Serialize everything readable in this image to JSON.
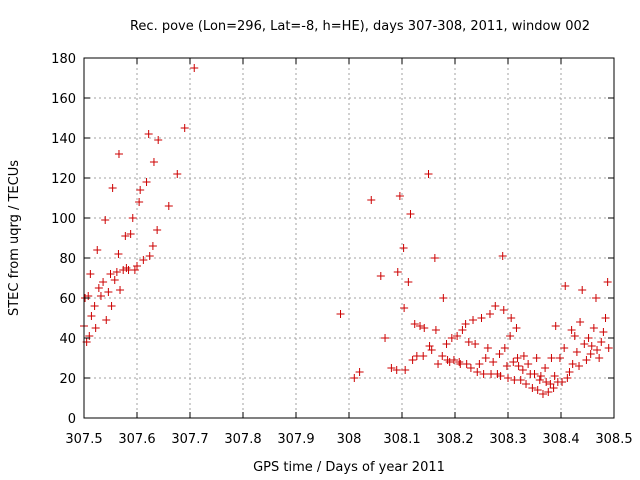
{
  "chart_data": {
    "type": "scatter",
    "title": "Rec. pove (Lon=296, Lat=-8, h=HE), days 307-308, 2011, window 002",
    "xlabel": "GPS time / Days of year 2011",
    "ylabel": "STEC from uqrg / TECUs",
    "xlim": [
      307.5,
      308.5
    ],
    "ylim": [
      0,
      180
    ],
    "xticks": [
      "307.5",
      "307.6",
      "307.7",
      "307.8",
      "307.9",
      "308",
      "308.1",
      "308.2",
      "308.3",
      "308.4",
      "308.5"
    ],
    "yticks": [
      "0",
      "20",
      "40",
      "60",
      "80",
      "100",
      "120",
      "140",
      "160",
      "180"
    ],
    "grid": true,
    "marker": "plus",
    "color": "#cc0000",
    "series": [
      {
        "points": [
          [
            307.5,
            46
          ],
          [
            307.502,
            60
          ],
          [
            307.505,
            38
          ],
          [
            307.508,
            61
          ],
          [
            307.51,
            41
          ],
          [
            307.512,
            72
          ],
          [
            307.514,
            51
          ],
          [
            307.52,
            56
          ],
          [
            307.522,
            45
          ],
          [
            307.525,
            84
          ],
          [
            307.528,
            65
          ],
          [
            307.532,
            61
          ],
          [
            307.536,
            68
          ],
          [
            307.54,
            99
          ],
          [
            307.542,
            49
          ],
          [
            307.546,
            63
          ],
          [
            307.55,
            72
          ],
          [
            307.552,
            56
          ],
          [
            307.554,
            115
          ],
          [
            307.558,
            69
          ],
          [
            307.562,
            73
          ],
          [
            307.565,
            82
          ],
          [
            307.566,
            132
          ],
          [
            307.568,
            64
          ],
          [
            307.574,
            74
          ],
          [
            307.578,
            91
          ],
          [
            307.58,
            75
          ],
          [
            307.584,
            74
          ],
          [
            307.588,
            92
          ],
          [
            307.592,
            100
          ],
          [
            307.596,
            74
          ],
          [
            307.6,
            76
          ],
          [
            307.604,
            108
          ],
          [
            307.606,
            114
          ],
          [
            307.612,
            79
          ],
          [
            307.618,
            118
          ],
          [
            307.622,
            142
          ],
          [
            307.624,
            81
          ],
          [
            307.63,
            86
          ],
          [
            307.632,
            128
          ],
          [
            307.638,
            94
          ],
          [
            307.64,
            139
          ],
          [
            307.66,
            106
          ],
          [
            307.676,
            122
          ],
          [
            307.69,
            145
          ],
          [
            307.708,
            175
          ],
          [
            307.984,
            52
          ],
          [
            308.01,
            20
          ],
          [
            308.02,
            23
          ],
          [
            308.042,
            109
          ],
          [
            308.06,
            71
          ],
          [
            308.068,
            40
          ],
          [
            308.08,
            25
          ],
          [
            308.09,
            24
          ],
          [
            308.092,
            73
          ],
          [
            308.096,
            111
          ],
          [
            308.103,
            85
          ],
          [
            308.104,
            55
          ],
          [
            308.106,
            24
          ],
          [
            308.112,
            68
          ],
          [
            308.116,
            102
          ],
          [
            308.12,
            29
          ],
          [
            308.124,
            47
          ],
          [
            308.128,
            31
          ],
          [
            308.134,
            46
          ],
          [
            308.14,
            31
          ],
          [
            308.142,
            45
          ],
          [
            308.15,
            122
          ],
          [
            308.152,
            36
          ],
          [
            308.156,
            34
          ],
          [
            308.162,
            80
          ],
          [
            308.164,
            44
          ],
          [
            308.168,
            27
          ],
          [
            308.176,
            31
          ],
          [
            308.178,
            60
          ],
          [
            308.184,
            37
          ],
          [
            308.186,
            29
          ],
          [
            308.19,
            28
          ],
          [
            308.194,
            40
          ],
          [
            308.198,
            29
          ],
          [
            308.204,
            41
          ],
          [
            308.208,
            28
          ],
          [
            308.21,
            27
          ],
          [
            308.214,
            44
          ],
          [
            308.22,
            47
          ],
          [
            308.222,
            27
          ],
          [
            308.226,
            38
          ],
          [
            308.23,
            25
          ],
          [
            308.234,
            49
          ],
          [
            308.238,
            37
          ],
          [
            308.242,
            23
          ],
          [
            308.246,
            27
          ],
          [
            308.25,
            50
          ],
          [
            308.254,
            22
          ],
          [
            308.258,
            30
          ],
          [
            308.262,
            35
          ],
          [
            308.266,
            52
          ],
          [
            308.268,
            22
          ],
          [
            308.272,
            28
          ],
          [
            308.276,
            56
          ],
          [
            308.28,
            22
          ],
          [
            308.284,
            32
          ],
          [
            308.286,
            21
          ],
          [
            308.29,
            81
          ],
          [
            308.292,
            54
          ],
          [
            308.294,
            35
          ],
          [
            308.298,
            26
          ],
          [
            308.3,
            20
          ],
          [
            308.304,
            41
          ],
          [
            308.306,
            50
          ],
          [
            308.31,
            28
          ],
          [
            308.312,
            19
          ],
          [
            308.316,
            45
          ],
          [
            308.318,
            30
          ],
          [
            308.32,
            26
          ],
          [
            308.324,
            19
          ],
          [
            308.328,
            24
          ],
          [
            308.33,
            31
          ],
          [
            308.334,
            17
          ],
          [
            308.338,
            27
          ],
          [
            308.342,
            22
          ],
          [
            308.346,
            15
          ],
          [
            308.35,
            22
          ],
          [
            308.354,
            30
          ],
          [
            308.356,
            14
          ],
          [
            308.36,
            19
          ],
          [
            308.362,
            21
          ],
          [
            308.366,
            12
          ],
          [
            308.37,
            25
          ],
          [
            308.372,
            18
          ],
          [
            308.376,
            13
          ],
          [
            308.38,
            17
          ],
          [
            308.382,
            30
          ],
          [
            308.386,
            15
          ],
          [
            308.388,
            21
          ],
          [
            308.39,
            46
          ],
          [
            308.394,
            18
          ],
          [
            308.398,
            30
          ],
          [
            308.402,
            18
          ],
          [
            308.406,
            35
          ],
          [
            308.408,
            66
          ],
          [
            308.412,
            20
          ],
          [
            308.416,
            23
          ],
          [
            308.42,
            44
          ],
          [
            308.422,
            27
          ],
          [
            308.426,
            41
          ],
          [
            308.43,
            33
          ],
          [
            308.434,
            26
          ],
          [
            308.436,
            48
          ],
          [
            308.44,
            64
          ],
          [
            308.444,
            37
          ],
          [
            308.448,
            29
          ],
          [
            308.452,
            40
          ],
          [
            308.456,
            32
          ],
          [
            308.458,
            36
          ],
          [
            308.462,
            45
          ],
          [
            308.466,
            60
          ],
          [
            308.468,
            34
          ],
          [
            308.472,
            30
          ],
          [
            308.476,
            38
          ],
          [
            308.48,
            43
          ],
          [
            308.484,
            50
          ],
          [
            308.488,
            68
          ],
          [
            308.49,
            35
          ]
        ]
      }
    ]
  }
}
